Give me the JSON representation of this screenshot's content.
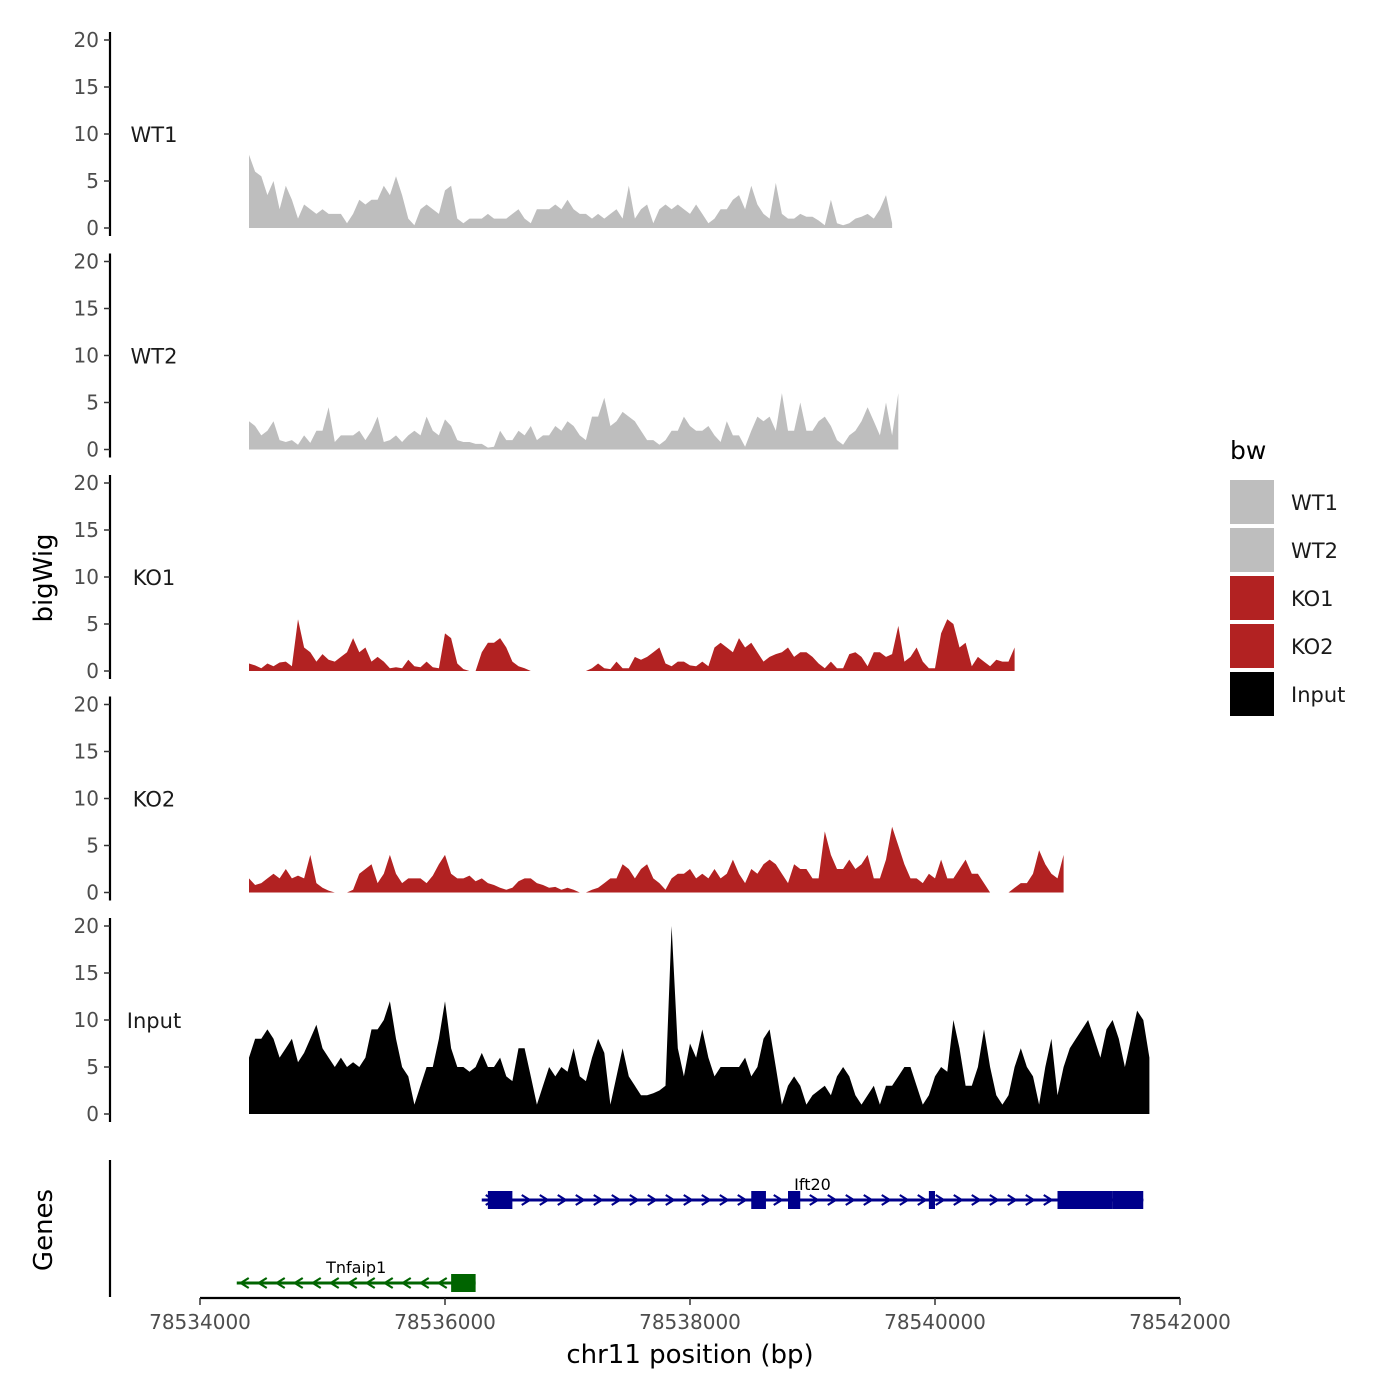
{
  "chart_data": {
    "type": "area",
    "ylabel": "bigWig",
    "genes_label": "Genes",
    "xlabel": "chr11 position (bp)",
    "xlim": [
      78534000,
      78542000
    ],
    "ylim": [
      0,
      20
    ],
    "x_ticks": [
      78534000,
      78536000,
      78538000,
      78540000,
      78542000
    ],
    "y_ticks": [
      0,
      5,
      10,
      15,
      20
    ],
    "x_start": 78534400,
    "x_step": 50,
    "legend": {
      "title": "bw",
      "position": "right",
      "entries": [
        {
          "label": "WT1",
          "color": "#bebebe"
        },
        {
          "label": "WT2",
          "color": "#bebebe"
        },
        {
          "label": "KO1",
          "color": "#b22222"
        },
        {
          "label": "KO2",
          "color": "#b22222"
        },
        {
          "label": "Input",
          "color": "#000000"
        }
      ]
    },
    "tracks": [
      {
        "name": "WT1",
        "color": "#bebebe",
        "values": [
          7.8,
          6,
          5.5,
          3.5,
          5,
          2,
          4.5,
          3,
          1,
          2.5,
          2,
          1.5,
          2,
          1.5,
          1.5,
          1.5,
          0.5,
          1.5,
          3,
          2.5,
          3,
          3,
          4.5,
          3.5,
          5.5,
          3.5,
          1,
          0.3,
          2,
          2.5,
          2,
          1.5,
          4,
          4.5,
          1,
          0.5,
          1,
          1,
          1,
          1.5,
          1,
          1,
          1,
          1.5,
          2,
          1,
          0.5,
          2,
          2,
          2,
          2.5,
          2,
          3,
          2,
          1.5,
          1.5,
          1,
          1.5,
          1,
          1.5,
          2,
          1,
          4.5,
          1,
          2,
          2.5,
          0.5,
          2,
          2.5,
          2,
          2.5,
          2,
          1.5,
          2.5,
          1.5,
          0.5,
          1,
          2,
          2,
          3,
          3.5,
          2,
          4.5,
          2.5,
          1.5,
          1,
          4.8,
          1.5,
          1,
          1,
          1.5,
          1.2,
          1.2,
          0.8,
          0.3,
          3,
          0.5,
          0.3,
          0.5,
          1,
          1.2,
          1.5,
          1,
          2,
          3.5,
          0.5
        ]
      },
      {
        "name": "WT2",
        "color": "#bebebe",
        "values": [
          3,
          2.5,
          1.5,
          2,
          3,
          1,
          0.8,
          1,
          0.5,
          1.5,
          0.7,
          2,
          2,
          4.5,
          0.8,
          1.5,
          1.5,
          1.5,
          2,
          1,
          2,
          3.5,
          0.8,
          1,
          1.5,
          0.8,
          1.5,
          2,
          1.5,
          3.5,
          2,
          1.5,
          3.2,
          2.5,
          1,
          0.8,
          0.8,
          0.6,
          0.6,
          0.2,
          0.3,
          2,
          1,
          1,
          2,
          1.5,
          2.5,
          1,
          1.5,
          1.5,
          2.5,
          2,
          3,
          2.5,
          1.5,
          1,
          3.5,
          3.5,
          5.5,
          2.5,
          3,
          4,
          3.5,
          3,
          2,
          1,
          1,
          0.5,
          1,
          2,
          2,
          3.5,
          2.5,
          2,
          2,
          2.5,
          1.5,
          0.8,
          3,
          1.5,
          1.5,
          0.3,
          2,
          3.5,
          3,
          3.5,
          2,
          6,
          2,
          2,
          5,
          2,
          2,
          3,
          3.5,
          2.5,
          1,
          0.5,
          1.5,
          2,
          3,
          4.5,
          3,
          1.5,
          5,
          1.5,
          6
        ]
      },
      {
        "name": "KO1",
        "color": "#b22222",
        "values": [
          0.8,
          0.6,
          0.3,
          0.8,
          0.5,
          0.9,
          1,
          0.5,
          5.5,
          2.5,
          2,
          1,
          1.8,
          1.2,
          1,
          1.5,
          2,
          3.5,
          2,
          2.5,
          1,
          1.5,
          1,
          0.3,
          0.4,
          0.3,
          1.2,
          0.5,
          0.4,
          1,
          0.4,
          0.3,
          4,
          3.5,
          0.8,
          0.2,
          0,
          0,
          2,
          3,
          3,
          3.5,
          2.5,
          1,
          0.5,
          0.3,
          0,
          0,
          0,
          0,
          0,
          0,
          0,
          0,
          0,
          0,
          0.3,
          0.8,
          0.3,
          0.2,
          1,
          0.3,
          0.3,
          1.5,
          1.2,
          1.5,
          2,
          2.5,
          0.8,
          0.5,
          1,
          1,
          0.6,
          0.5,
          1,
          0.5,
          2.5,
          3,
          2.5,
          2,
          3.5,
          2.5,
          3,
          2,
          1,
          1.5,
          1.8,
          2,
          2.5,
          1.5,
          2,
          2,
          1.5,
          0.8,
          0.3,
          1,
          0.3,
          0.3,
          1.8,
          2,
          1.5,
          0.5,
          2,
          2,
          1.5,
          1.8,
          4.8,
          1,
          1.5,
          2.5,
          1,
          0.3,
          0.3,
          4,
          5.5,
          5,
          2.5,
          3,
          0.5,
          1.5,
          1,
          0.5,
          1.2,
          1,
          1,
          2.5
        ]
      },
      {
        "name": "KO2",
        "color": "#b22222",
        "values": [
          1.5,
          0.8,
          1,
          1.5,
          2,
          1.5,
          2.5,
          1.5,
          1.8,
          1.5,
          4,
          1,
          0.5,
          0.2,
          0,
          0,
          0,
          0.3,
          2,
          2.5,
          3,
          1,
          2,
          4,
          2,
          1,
          1.5,
          1.5,
          1.5,
          1,
          1.8,
          3,
          4,
          2,
          1.5,
          1.5,
          1.8,
          1.2,
          1.5,
          1,
          0.8,
          0.5,
          0.3,
          0.5,
          1.2,
          1.5,
          1.5,
          1,
          0.8,
          0.5,
          0.6,
          0.3,
          0.5,
          0.3,
          0,
          0,
          0.3,
          0.5,
          1,
          1.5,
          1.5,
          3,
          2.5,
          1.5,
          2.5,
          3,
          1.5,
          1,
          0.3,
          1.5,
          2,
          2,
          2.5,
          1.5,
          2,
          1.5,
          2.5,
          1.5,
          2,
          3.5,
          2,
          1,
          2.5,
          2,
          3,
          3.5,
          3,
          2,
          1,
          3,
          2.5,
          2.5,
          1.5,
          1.5,
          6.5,
          4,
          2.5,
          2.5,
          3.5,
          2.5,
          3,
          4,
          1.5,
          1.5,
          3.5,
          7,
          5,
          3,
          1.5,
          1.5,
          1,
          2,
          1.5,
          3.5,
          1.5,
          1.5,
          2.5,
          3.5,
          2,
          2,
          1,
          0,
          0,
          0,
          0,
          0.5,
          1,
          1,
          2,
          4.5,
          3,
          2,
          1.5,
          4
        ]
      },
      {
        "name": "Input",
        "color": "#000000",
        "values": [
          6,
          8,
          8,
          9,
          8,
          6,
          7,
          8,
          5.5,
          6.5,
          8,
          9.5,
          7,
          6,
          5,
          6,
          5,
          5.5,
          5,
          6,
          9,
          9,
          10,
          12,
          8,
          5,
          4,
          1,
          3,
          5,
          5,
          8,
          12,
          7,
          5,
          5,
          4.5,
          5,
          6.5,
          5,
          5,
          6,
          4,
          3.5,
          7,
          7,
          4,
          1,
          3,
          5,
          4,
          5,
          4.5,
          7,
          4,
          3.5,
          6,
          8,
          6.5,
          1,
          4,
          7,
          4,
          3,
          2,
          2,
          2.2,
          2.5,
          3,
          20,
          7,
          4,
          7.5,
          6,
          9,
          6,
          4,
          5,
          5,
          5,
          5,
          6,
          4,
          5,
          8,
          9,
          5,
          1,
          3,
          4,
          3,
          1,
          2,
          2.5,
          3,
          2,
          4,
          5,
          4,
          2,
          1,
          2,
          3,
          1,
          3,
          3,
          4,
          5,
          5,
          3,
          1,
          2,
          4,
          5,
          4.5,
          10,
          7,
          3,
          3,
          5,
          9,
          5,
          2,
          1,
          2,
          5,
          7,
          5,
          4,
          1,
          5,
          8,
          2,
          5,
          7,
          8,
          9,
          10,
          8,
          6,
          9,
          10,
          8,
          5,
          8,
          11,
          10,
          6
        ]
      }
    ],
    "genes": [
      {
        "name": "Ift20",
        "strand": "+",
        "start": 78536300,
        "end": 78541700,
        "color": "#00008b",
        "exons": [
          [
            78536350,
            78536550
          ],
          [
            78538500,
            78538620
          ],
          [
            78538800,
            78538900
          ],
          [
            78539950,
            78540000
          ],
          [
            78541000,
            78541450
          ],
          [
            78541450,
            78541700
          ]
        ]
      },
      {
        "name": "Tnfaip1",
        "strand": "-",
        "start": 78534300,
        "end": 78536250,
        "color": "#006400",
        "exons": [
          [
            78536050,
            78536250
          ]
        ]
      }
    ]
  }
}
